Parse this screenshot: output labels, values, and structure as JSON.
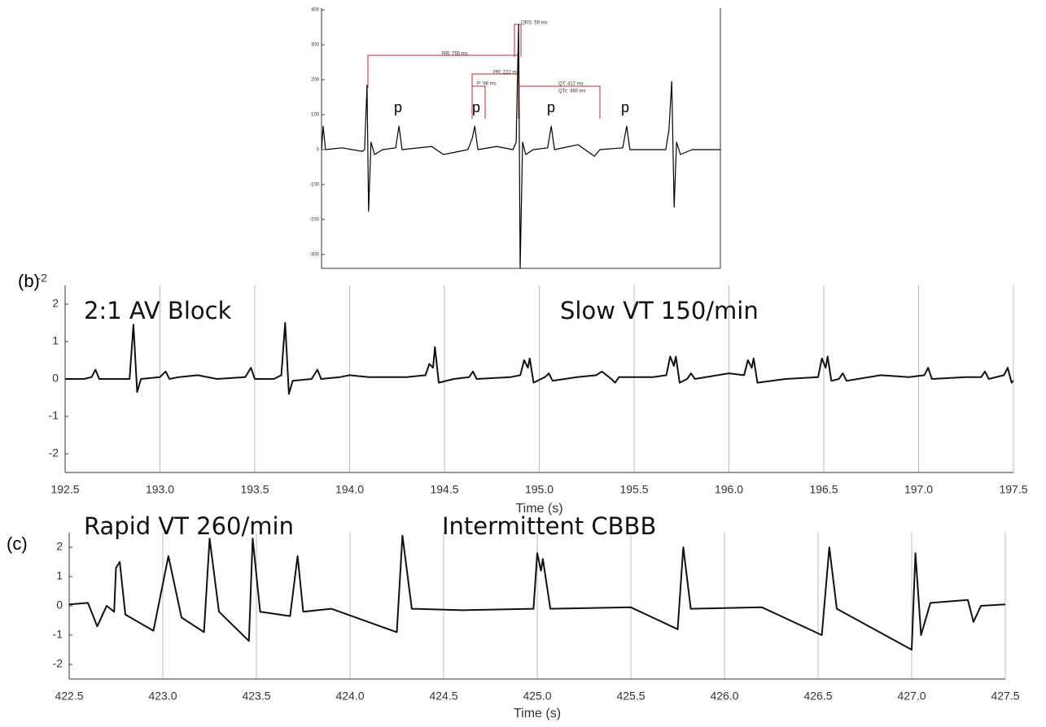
{
  "chart_data": [
    {
      "type": "line",
      "xlim": [
        0,
        1000
      ],
      "ylim": [
        -340,
        405
      ],
      "yticks": [
        400,
        300,
        200,
        100,
        0,
        -100,
        -200,
        -300
      ],
      "x": [
        0,
        4,
        10,
        51,
        102,
        108,
        114,
        118,
        124,
        133,
        153,
        186,
        194,
        202,
        276,
        306,
        367,
        378,
        384,
        392,
        439,
        480,
        488,
        494,
        498,
        504,
        512,
        531,
        567,
        576,
        584,
        643,
        684,
        698,
        755,
        765,
        773,
        827,
        863,
        871,
        878,
        884,
        890,
        900,
        929,
        1000
      ],
      "series": [
        {
          "color": "#000000",
          "values": [
            0,
            67,
            0,
            5,
            -5,
            0,
            184,
            -177,
            21,
            -14,
            0,
            5,
            67,
            0,
            9,
            -14,
            0,
            33,
            67,
            0,
            9,
            0,
            21,
            358,
            -340,
            21,
            -14,
            0,
            5,
            67,
            0,
            14,
            -19,
            0,
            5,
            67,
            0,
            0,
            0,
            56,
            195,
            -165,
            21,
            -14,
            0,
            0
          ]
        }
      ],
      "annotations": [
        "QRS: 59 ms",
        "RR: 755 ms",
        "PR: 222 ms",
        "P: 98 ms",
        "QT: 417 ms",
        "QTc: 480 ms"
      ],
      "wave_labels": [
        "p",
        "p",
        "p",
        "p"
      ]
    },
    {
      "type": "line",
      "label": "(b)",
      "corner_label": "-2",
      "xlabel": "Time (s)",
      "annotations": [
        "2:1 AV Block",
        "Slow VT 150/min"
      ],
      "xlim": [
        192.5,
        197.5
      ],
      "ylim": [
        -2.5,
        2.5
      ],
      "xticks": [
        192.5,
        {
          "value": 193,
          "label": "193.0"
        },
        193.5,
        {
          "value": 194,
          "label": "194.0"
        },
        194.5,
        {
          "value": 195,
          "label": "195.0"
        },
        195.5,
        {
          "value": 196,
          "label": "196.0"
        },
        196.5,
        {
          "value": 197,
          "label": "197.0"
        },
        197.5
      ],
      "yticks": [
        -2,
        -1,
        0,
        1,
        2
      ],
      "x": [
        192.5,
        192.6,
        192.64,
        192.66,
        192.68,
        192.8,
        192.84,
        192.86,
        192.88,
        192.9,
        193.0,
        193.03,
        193.05,
        193.1,
        193.2,
        193.3,
        193.45,
        193.48,
        193.5,
        193.6,
        193.64,
        193.66,
        193.68,
        193.7,
        193.8,
        193.83,
        193.85,
        193.95,
        194.0,
        194.1,
        194.3,
        194.4,
        194.42,
        194.44,
        194.45,
        194.47,
        194.55,
        194.63,
        194.65,
        194.67,
        194.85,
        194.9,
        194.92,
        194.94,
        194.95,
        194.97,
        195.03,
        195.05,
        195.07,
        195.2,
        195.3,
        195.33,
        195.38,
        195.4,
        195.42,
        195.6,
        195.67,
        195.69,
        195.71,
        195.72,
        195.74,
        195.78,
        195.8,
        195.82,
        196.0,
        196.08,
        196.1,
        196.12,
        196.13,
        196.15,
        196.3,
        196.47,
        196.49,
        196.51,
        196.52,
        196.54,
        196.58,
        196.6,
        196.62,
        196.8,
        196.95,
        197.03,
        197.05,
        197.07,
        197.25,
        197.33,
        197.35,
        197.37,
        197.45,
        197.47,
        197.49,
        197.5
      ],
      "series": [
        {
          "color": "#111111",
          "values": [
            0,
            0,
            0.05,
            0.25,
            0,
            0,
            0,
            1.45,
            -0.35,
            0,
            0.05,
            0.2,
            0,
            0.05,
            0.1,
            0,
            0.05,
            0.3,
            0,
            0,
            0.1,
            1.5,
            -0.4,
            -0.05,
            0,
            0.25,
            0,
            0.05,
            0.1,
            0.05,
            0.05,
            0.1,
            0.4,
            0.3,
            0.85,
            -0.1,
            0,
            0.05,
            0.2,
            0,
            0.05,
            0.1,
            0.5,
            0.3,
            0.55,
            -0.1,
            0.05,
            0.15,
            -0.05,
            0.05,
            0.1,
            0.2,
            0,
            -0.1,
            0.05,
            0.05,
            0.1,
            0.6,
            0.35,
            0.6,
            -0.1,
            0,
            0.15,
            0,
            0.15,
            0.1,
            0.5,
            0.3,
            0.55,
            -0.1,
            0,
            0.05,
            0.55,
            0.3,
            0.6,
            -0.05,
            0,
            0.15,
            -0.05,
            0.1,
            0.05,
            0.1,
            0.3,
            0,
            0.05,
            0.05,
            0.2,
            0,
            0.1,
            0.3,
            -0.1,
            -0.05
          ]
        }
      ]
    },
    {
      "type": "line",
      "label": "(c)",
      "xlabel": "Time (s)",
      "annotations": [
        "Rapid VT 260/min",
        "Intermittent CBBB"
      ],
      "xlim": [
        422.5,
        427.5
      ],
      "ylim": [
        -2.5,
        2.5
      ],
      "xticks": [
        422.5,
        {
          "value": 423,
          "label": "423.0"
        },
        423.5,
        {
          "value": 424,
          "label": "424.0"
        },
        424.5,
        {
          "value": 425,
          "label": "425.0"
        },
        425.5,
        {
          "value": 426,
          "label": "426.0"
        },
        426.5,
        {
          "value": 427,
          "label": "427.0"
        },
        427.5
      ],
      "yticks": [
        -2,
        -1,
        0,
        1,
        2
      ],
      "x": [
        422.5,
        422.6,
        422.65,
        422.7,
        422.74,
        422.75,
        422.77,
        422.8,
        422.95,
        423.03,
        423.1,
        423.22,
        423.25,
        423.3,
        423.46,
        423.48,
        423.52,
        423.68,
        423.72,
        423.75,
        423.9,
        424.25,
        424.28,
        424.33,
        424.6,
        424.98,
        425.0,
        425.02,
        425.03,
        425.07,
        425.5,
        425.75,
        425.78,
        425.82,
        426.2,
        426.52,
        426.56,
        426.6,
        427.0,
        427.02,
        427.05,
        427.1,
        427.3,
        427.33,
        427.37,
        427.5
      ],
      "series": [
        {
          "color": "#111111",
          "values": [
            0.05,
            0.1,
            -0.7,
            0,
            -0.2,
            1.3,
            1.5,
            -0.3,
            -0.85,
            1.7,
            -0.4,
            -0.9,
            2.3,
            -0.2,
            -1.2,
            2.3,
            -0.2,
            -0.35,
            1.7,
            -0.2,
            -0.1,
            -0.9,
            2.4,
            -0.1,
            -0.15,
            -0.1,
            1.8,
            1.2,
            1.6,
            -0.1,
            -0.05,
            -0.8,
            2.0,
            -0.1,
            -0.05,
            -1.0,
            2.0,
            -0.1,
            -1.5,
            1.8,
            -1.0,
            0.1,
            0.2,
            -0.55,
            0,
            0.05
          ]
        }
      ]
    }
  ]
}
